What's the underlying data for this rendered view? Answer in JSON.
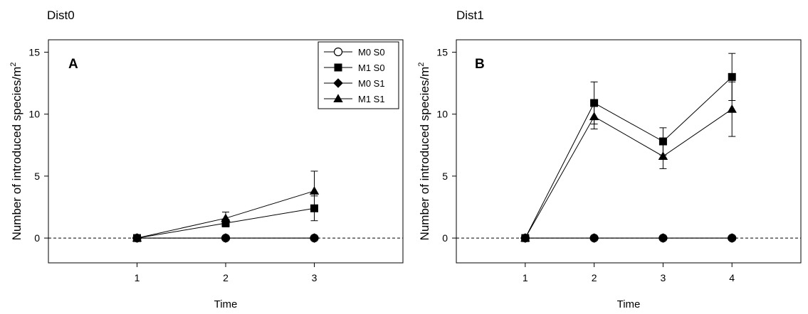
{
  "chart_data": [
    {
      "type": "line",
      "title": "Dist0",
      "panel_label": "A",
      "xlabel": "Time",
      "ylabel": "Number of introduced species/m",
      "ylabel_superscript": "2",
      "xlim": [
        0,
        4
      ],
      "ylim": [
        -2,
        16
      ],
      "x_ticks": [
        1,
        2,
        3
      ],
      "y_ticks": [
        0,
        5,
        10,
        15
      ],
      "reference_line": 0,
      "legend_position": "top-right",
      "series": [
        {
          "name": "M0 S0",
          "marker": "circle-open",
          "x": [
            1,
            2,
            3
          ],
          "y": [
            0,
            0,
            0
          ],
          "err": [
            0,
            0,
            0
          ]
        },
        {
          "name": "M1 S0",
          "marker": "square-filled",
          "x": [
            1,
            2,
            3
          ],
          "y": [
            0,
            1.2,
            2.4
          ],
          "err": [
            0,
            0.3,
            1.0
          ]
        },
        {
          "name": "M0 S1",
          "marker": "diamond-filled",
          "x": [
            1,
            2,
            3
          ],
          "y": [
            0,
            0,
            0
          ],
          "err": [
            0,
            0,
            0
          ]
        },
        {
          "name": "M1 S1",
          "marker": "triangle-filled",
          "x": [
            1,
            2,
            3
          ],
          "y": [
            0,
            1.6,
            3.8
          ],
          "err": [
            0,
            0.5,
            1.6
          ]
        }
      ]
    },
    {
      "type": "line",
      "title": "Dist1",
      "panel_label": "B",
      "xlabel": "Time",
      "ylabel": "Number of introduced species/m",
      "ylabel_superscript": "2",
      "xlim": [
        0,
        5
      ],
      "ylim": [
        -2,
        16
      ],
      "x_ticks": [
        1,
        2,
        3,
        4
      ],
      "y_ticks": [
        0,
        5,
        10,
        15
      ],
      "reference_line": 0,
      "series": [
        {
          "name": "M0 S0",
          "marker": "circle-open",
          "x": [
            1,
            2,
            3,
            4
          ],
          "y": [
            0,
            0,
            0,
            0
          ],
          "err": [
            0,
            0,
            0,
            0
          ]
        },
        {
          "name": "M1 S0",
          "marker": "square-filled",
          "x": [
            1,
            2,
            3,
            4
          ],
          "y": [
            0,
            10.9,
            7.8,
            13.0
          ],
          "err": [
            0,
            1.7,
            1.1,
            1.9
          ]
        },
        {
          "name": "M0 S1",
          "marker": "diamond-filled",
          "x": [
            1,
            2,
            3,
            4
          ],
          "y": [
            0,
            0,
            0,
            0
          ],
          "err": [
            0,
            0,
            0,
            0
          ]
        },
        {
          "name": "M1 S1",
          "marker": "triangle-filled",
          "x": [
            1,
            2,
            3,
            4
          ],
          "y": [
            0,
            9.8,
            6.6,
            10.4
          ],
          "err": [
            0,
            1.0,
            1.0,
            2.2
          ]
        }
      ]
    }
  ]
}
